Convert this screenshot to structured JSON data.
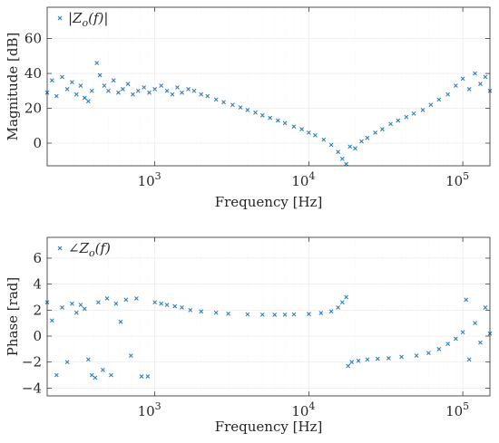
{
  "colors": {
    "series": "#2f7fbf",
    "axes": "#262626",
    "grid": "#e3e3e3"
  },
  "chart_data": [
    {
      "type": "scatter",
      "x_scale": "log",
      "xlim": [
        200,
        150000
      ],
      "ylim": [
        -13,
        78
      ],
      "xlabel": "Frequency [Hz]",
      "ylabel": "Magnitude [dB]",
      "legend": {
        "label": "|Z_o(f)|",
        "placement": "top-left"
      },
      "x_ticks": [
        {
          "value": 1000,
          "base": "10",
          "exp": "3"
        },
        {
          "value": 10000,
          "base": "10",
          "exp": "4"
        },
        {
          "value": 100000,
          "base": "10",
          "exp": "5"
        }
      ],
      "y_ticks": [
        0,
        20,
        40,
        60
      ],
      "grid": true,
      "series": [
        {
          "name": "|Z_o(f)|",
          "points": [
            [
              200,
              29
            ],
            [
              215,
              36
            ],
            [
              230,
              27
            ],
            [
              250,
              38
            ],
            [
              270,
              31
            ],
            [
              290,
              35
            ],
            [
              310,
              28
            ],
            [
              330,
              33
            ],
            [
              350,
              26
            ],
            [
              370,
              24
            ],
            [
              390,
              30
            ],
            [
              420,
              46
            ],
            [
              440,
              39
            ],
            [
              470,
              33
            ],
            [
              500,
              30
            ],
            [
              540,
              36
            ],
            [
              580,
              29
            ],
            [
              620,
              31
            ],
            [
              670,
              34
            ],
            [
              720,
              28
            ],
            [
              780,
              30
            ],
            [
              850,
              32
            ],
            [
              920,
              29
            ],
            [
              1000,
              31
            ],
            [
              1100,
              33
            ],
            [
              1200,
              30
            ],
            [
              1300,
              28
            ],
            [
              1400,
              32
            ],
            [
              1500,
              29
            ],
            [
              1650,
              31
            ],
            [
              1800,
              30
            ],
            [
              2000,
              28
            ],
            [
              2200,
              27
            ],
            [
              2500,
              25
            ],
            [
              2800,
              23.5
            ],
            [
              3200,
              22
            ],
            [
              3600,
              20.5
            ],
            [
              4000,
              19
            ],
            [
              4500,
              17.5
            ],
            [
              5000,
              16
            ],
            [
              5600,
              14.5
            ],
            [
              6300,
              13
            ],
            [
              7000,
              11.5
            ],
            [
              8000,
              9.5
            ],
            [
              9000,
              8
            ],
            [
              10000,
              6
            ],
            [
              11000,
              4.5
            ],
            [
              12500,
              2
            ],
            [
              14000,
              -1
            ],
            [
              15500,
              -5
            ],
            [
              16500,
              -9
            ],
            [
              17500,
              -12
            ],
            [
              18500,
              -2
            ],
            [
              20000,
              -3
            ],
            [
              22000,
              1
            ],
            [
              24000,
              3
            ],
            [
              27000,
              6
            ],
            [
              30000,
              8
            ],
            [
              34000,
              11
            ],
            [
              38000,
              13
            ],
            [
              43000,
              15
            ],
            [
              48000,
              17
            ],
            [
              55000,
              19
            ],
            [
              62000,
              22
            ],
            [
              70000,
              25
            ],
            [
              80000,
              28
            ],
            [
              90000,
              33
            ],
            [
              100000,
              37
            ],
            [
              110000,
              31
            ],
            [
              120000,
              40
            ],
            [
              130000,
              34
            ],
            [
              140000,
              38
            ],
            [
              150000,
              30
            ]
          ]
        }
      ]
    },
    {
      "type": "scatter",
      "x_scale": "log",
      "xlim": [
        200,
        150000
      ],
      "ylim": [
        -4.6,
        7.6
      ],
      "xlabel": "Frequency [Hz]",
      "ylabel": "Phase [rad]",
      "legend": {
        "label": "∠Z_o(f)",
        "placement": "top-left"
      },
      "x_ticks": [
        {
          "value": 1000,
          "base": "10",
          "exp": "3"
        },
        {
          "value": 10000,
          "base": "10",
          "exp": "4"
        },
        {
          "value": 100000,
          "base": "10",
          "exp": "5"
        }
      ],
      "y_ticks": [
        -4,
        -2,
        0,
        2,
        4,
        6
      ],
      "grid": true,
      "series": [
        {
          "name": "∠Z_o(f)",
          "points": [
            [
              200,
              2.6
            ],
            [
              215,
              1.2
            ],
            [
              230,
              -3.0
            ],
            [
              250,
              2.2
            ],
            [
              270,
              -2.0
            ],
            [
              290,
              2.5
            ],
            [
              310,
              1.8
            ],
            [
              330,
              2.4
            ],
            [
              350,
              2.1
            ],
            [
              370,
              -1.8
            ],
            [
              390,
              -3.0
            ],
            [
              410,
              -3.2
            ],
            [
              430,
              2.6
            ],
            [
              460,
              -2.6
            ],
            [
              490,
              2.9
            ],
            [
              520,
              -3.0
            ],
            [
              560,
              2.5
            ],
            [
              600,
              1.1
            ],
            [
              650,
              2.8
            ],
            [
              700,
              -1.5
            ],
            [
              760,
              2.9
            ],
            [
              820,
              -3.1
            ],
            [
              900,
              -3.1
            ],
            [
              1000,
              2.6
            ],
            [
              1100,
              2.5
            ],
            [
              1200,
              2.4
            ],
            [
              1350,
              2.3
            ],
            [
              1500,
              2.2
            ],
            [
              1700,
              2.0
            ],
            [
              2000,
              1.9
            ],
            [
              2500,
              1.8
            ],
            [
              3000,
              1.72
            ],
            [
              4000,
              1.68
            ],
            [
              5000,
              1.65
            ],
            [
              6000,
              1.64
            ],
            [
              7000,
              1.65
            ],
            [
              8000,
              1.67
            ],
            [
              10000,
              1.7
            ],
            [
              12000,
              1.78
            ],
            [
              14000,
              1.9
            ],
            [
              15500,
              2.2
            ],
            [
              16500,
              2.6
            ],
            [
              17500,
              3.0
            ],
            [
              18000,
              -2.3
            ],
            [
              19000,
              -2.0
            ],
            [
              21000,
              -1.9
            ],
            [
              24000,
              -1.8
            ],
            [
              28000,
              -1.75
            ],
            [
              33000,
              -1.7
            ],
            [
              40000,
              -1.6
            ],
            [
              50000,
              -1.5
            ],
            [
              60000,
              -1.3
            ],
            [
              70000,
              -1.0
            ],
            [
              80000,
              -0.6
            ],
            [
              90000,
              -0.2
            ],
            [
              100000,
              0.3
            ],
            [
              105000,
              2.8
            ],
            [
              110000,
              -1.8
            ],
            [
              120000,
              1.0
            ],
            [
              130000,
              -0.5
            ],
            [
              140000,
              2.2
            ],
            [
              150000,
              0.2
            ]
          ]
        }
      ]
    }
  ]
}
